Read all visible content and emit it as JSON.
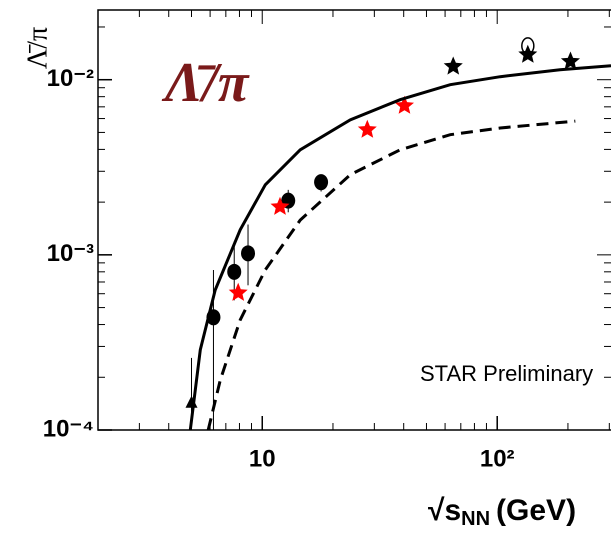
{
  "chart_data": {
    "type": "scatter",
    "title": "Λ̄/π",
    "title_color": "#7a1a1a",
    "y_label": "Λ̄/π",
    "x_label": "√s",
    "x_label_sub": "NN",
    "x_label_unit": "(GeV)",
    "annotation": "STAR Preliminary",
    "log_x": true,
    "log_y": true,
    "xlim": [
      2.0,
      305
    ],
    "ylim": [
      0.0001,
      0.025
    ],
    "xticks": [
      10,
      {
        "value": 100,
        "label": "10²"
      }
    ],
    "yticks": [
      {
        "value": 0.0001,
        "label": "10⁻⁴"
      },
      {
        "value": 0.001,
        "label": "10⁻³"
      },
      {
        "value": 0.01,
        "label": "10⁻²"
      }
    ],
    "series": [
      {
        "marker": "circle",
        "color": "#000000",
        "x": [
          6.2,
          7.6,
          8.7,
          12.9,
          17.8
        ],
        "values": [
          0.00044,
          0.0008,
          0.00102,
          0.00204,
          0.0026
        ],
        "err_lo": [
          0.0001,
          0.00055,
          0.00067,
          0.00175,
          0.0023
        ],
        "err_hi": [
          0.00082,
          0.00119,
          0.00149,
          0.00235,
          0.00286
        ]
      },
      {
        "marker": "triangle",
        "color": "#000000",
        "x": [
          5.0
        ],
        "values": [
          0.000143
        ],
        "err_lo": [
          0.0001
        ],
        "err_hi": [
          0.000258
        ]
      },
      {
        "marker": "star",
        "color": "#ff0000",
        "x": [
          7.9,
          11.9,
          28,
          40.3
        ],
        "values": [
          0.000607,
          0.00188,
          0.00518,
          0.0071
        ]
      },
      {
        "marker": "star",
        "color": "#000000",
        "x": [
          65,
          135,
          205
        ],
        "values": [
          0.0119,
          0.0139,
          0.0127
        ]
      },
      {
        "marker": "open-circle",
        "color": "#000000",
        "x": [
          135
        ],
        "values": [
          0.0156
        ]
      },
      {
        "marker": "line",
        "style": "solid",
        "color": "#000000",
        "x": [
          4.94,
          5.45,
          6.31,
          8.06,
          10.3,
          14.5,
          23.7,
          38.6,
          63.1,
          103,
          185,
          305
        ],
        "values": [
          0.0001,
          0.000287,
          0.00063,
          0.00139,
          0.00251,
          0.00398,
          0.0059,
          0.00769,
          0.00936,
          0.0104,
          0.0114,
          0.012
        ]
      },
      {
        "marker": "line",
        "style": "dashed",
        "color": "#000000",
        "x": [
          5.89,
          6.63,
          8.06,
          10.3,
          14.5,
          23.7,
          38.6,
          63.1,
          103,
          215
        ],
        "values": [
          0.0001,
          0.000193,
          0.000425,
          0.00082,
          0.00158,
          0.00287,
          0.00398,
          0.00485,
          0.0053,
          0.0058
        ]
      }
    ]
  }
}
